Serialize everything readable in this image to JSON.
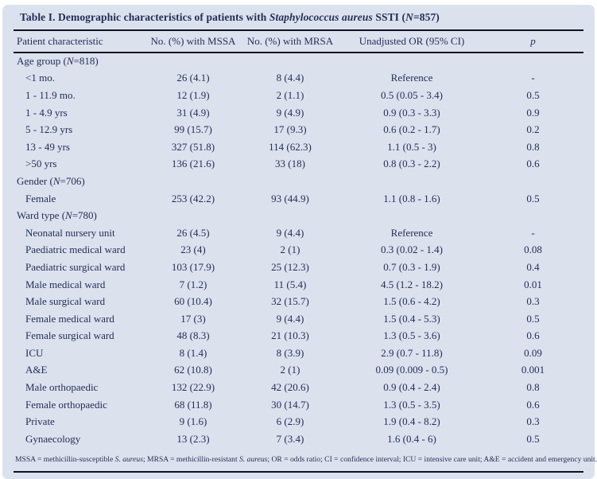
{
  "title_segments": [
    {
      "t": "Table I. Demographic characteristics of patients with "
    },
    {
      "t": "Staphylococcus aureus",
      "i": true
    },
    {
      "t": " SSTI ("
    },
    {
      "t": "N",
      "i": true
    },
    {
      "t": "=857)"
    }
  ],
  "table": {
    "headers": [
      "Patient characteristic",
      "No. (%) with MSSA",
      "No. (%) with MRSA",
      "Unadjusted OR (95% CI)",
      "p"
    ],
    "sections": [
      {
        "label_segments": [
          {
            "t": "Age group ("
          },
          {
            "t": "N",
            "i": true
          },
          {
            "t": "=818)"
          }
        ],
        "rows": [
          [
            "<1 mo.",
            "26 (4.1)",
            "8 (4.4)",
            "Reference",
            "-"
          ],
          [
            "1 - 11.9 mo.",
            "12 (1.9)",
            "2 (1.1)",
            "0.5 (0.05 - 3.4)",
            "0.5"
          ],
          [
            "1 - 4.9 yrs",
            "31 (4.9)",
            "9 (4.9)",
            "0.9 (0.3 - 3.3)",
            "0.9"
          ],
          [
            "5 - 12.9 yrs",
            "99 (15.7)",
            "17 (9.3)",
            "0.6 (0.2 - 1.7)",
            "0.2"
          ],
          [
            "13 - 49 yrs",
            "327 (51.8)",
            "114 (62.3)",
            "1.1 (0.5 - 3)",
            "0.8"
          ],
          [
            ">50 yrs",
            "136 (21.6)",
            "33 (18)",
            "0.8 (0.3 - 2.2)",
            "0.6"
          ]
        ]
      },
      {
        "label_segments": [
          {
            "t": "Gender ("
          },
          {
            "t": "N",
            "i": true
          },
          {
            "t": "=706)"
          }
        ],
        "rows": [
          [
            "Female",
            "253 (42.2)",
            "93 (44.9)",
            "1.1 (0.8 - 1.6)",
            "0.5"
          ]
        ]
      },
      {
        "label_segments": [
          {
            "t": "Ward type ("
          },
          {
            "t": "N",
            "i": true
          },
          {
            "t": "=780)"
          }
        ],
        "rows": [
          [
            "Neonatal nursery unit",
            "26 (4.5)",
            "9 (4.4)",
            "Reference",
            "-"
          ],
          [
            "Paediatric medical ward",
            "23 (4)",
            "2 (1)",
            "0.3 (0.02 - 1.4)",
            "0.08"
          ],
          [
            "Paediatric surgical ward",
            "103 (17.9)",
            "25 (12.3)",
            "0.7 (0.3 - 1.9)",
            "0.4"
          ],
          [
            "Male medical ward",
            "7 (1.2)",
            "11 (5.4)",
            "4.5 (1.2 - 18.2)",
            "0.01"
          ],
          [
            "Male surgical ward",
            "60 (10.4)",
            "32 (15.7)",
            "1.5 (0.6 - 4.2)",
            "0.3"
          ],
          [
            "Female medical ward",
            "17 (3)",
            "9 (4.4)",
            "1.5 (0.4 - 5.3)",
            "0.5"
          ],
          [
            "Female surgical ward",
            "48 (8.3)",
            "21 (10.3)",
            "1.3 (0.5 - 3.6)",
            "0.6"
          ],
          [
            "ICU",
            "8 (1.4)",
            "8 (3.9)",
            "2.9 (0.7 - 11.8)",
            "0.09"
          ],
          [
            "A&E",
            "62 (10.8)",
            "2 (1)",
            "0.09 (0.009 - 0.5)",
            "0.001"
          ],
          [
            "Male orthopaedic",
            "132 (22.9)",
            "42 (20.6)",
            "0.9 (0.4 - 2.4)",
            "0.8"
          ],
          [
            "Female orthopaedic",
            "68 (11.8)",
            "30 (14.7)",
            "1.3 (0.5 - 3.5)",
            "0.6"
          ],
          [
            "Private",
            "9 (1.6)",
            "6 (2.9)",
            "1.9 (0.4 - 8.2)",
            "0.3"
          ],
          [
            "Gynaecology",
            "13 (2.3)",
            "7 (3.4)",
            "1.6 (0.4 - 6)",
            "0.5"
          ]
        ]
      }
    ]
  },
  "footnote_segments": [
    {
      "t": "MSSA = methicillin-susceptible "
    },
    {
      "t": "S. aureus",
      "i": true
    },
    {
      "t": "; MRSA = methicillin-resistant "
    },
    {
      "t": "S. aureus",
      "i": true
    },
    {
      "t": "; OR = odds ratio; CI = confidence interval; ICU = intensive care unit; A&E = accident and emergency unit."
    }
  ],
  "colors": {
    "panel_bg": "#dce1ee",
    "text": "#1f2e55",
    "rule": "#0d1322"
  }
}
